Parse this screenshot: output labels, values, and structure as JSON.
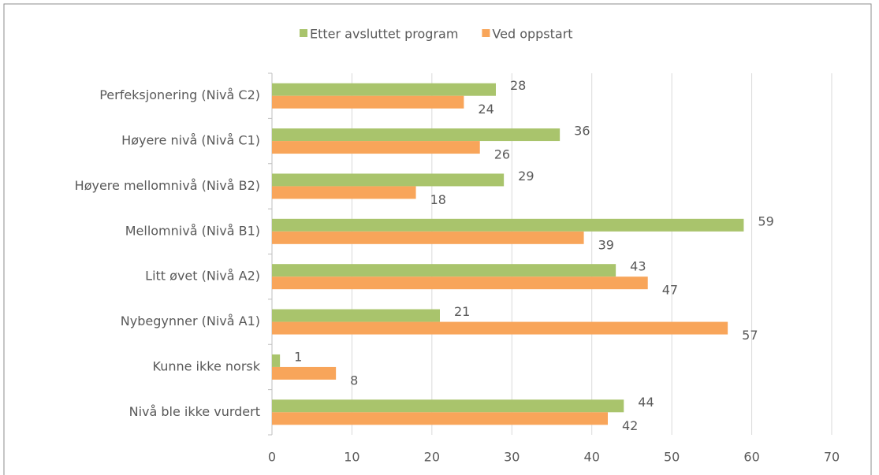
{
  "chart_data": {
    "type": "bar",
    "orientation": "horizontal",
    "categories": [
      "Perfeksjonering (Nivå C2)",
      "Høyere nivå (Nivå C1)",
      "Høyere mellomnivå (Nivå B2)",
      "Mellomnivå (Nivå B1)",
      "Litt øvet (Nivå A2)",
      "Nybegynner (Nivå A1)",
      "Kunne ikke norsk",
      "Nivå ble ikke vurdert"
    ],
    "series": [
      {
        "name": "Etter avsluttet program",
        "color": "#a9c46c",
        "values": [
          28,
          36,
          29,
          59,
          43,
          21,
          1,
          44
        ]
      },
      {
        "name": "Ved oppstart",
        "color": "#f8a55a",
        "values": [
          24,
          26,
          18,
          39,
          47,
          57,
          8,
          42
        ]
      }
    ],
    "xlim": [
      0,
      70
    ],
    "xticks": [
      0,
      10,
      20,
      30,
      40,
      50,
      60,
      70
    ],
    "grid": true,
    "legend": "top"
  }
}
